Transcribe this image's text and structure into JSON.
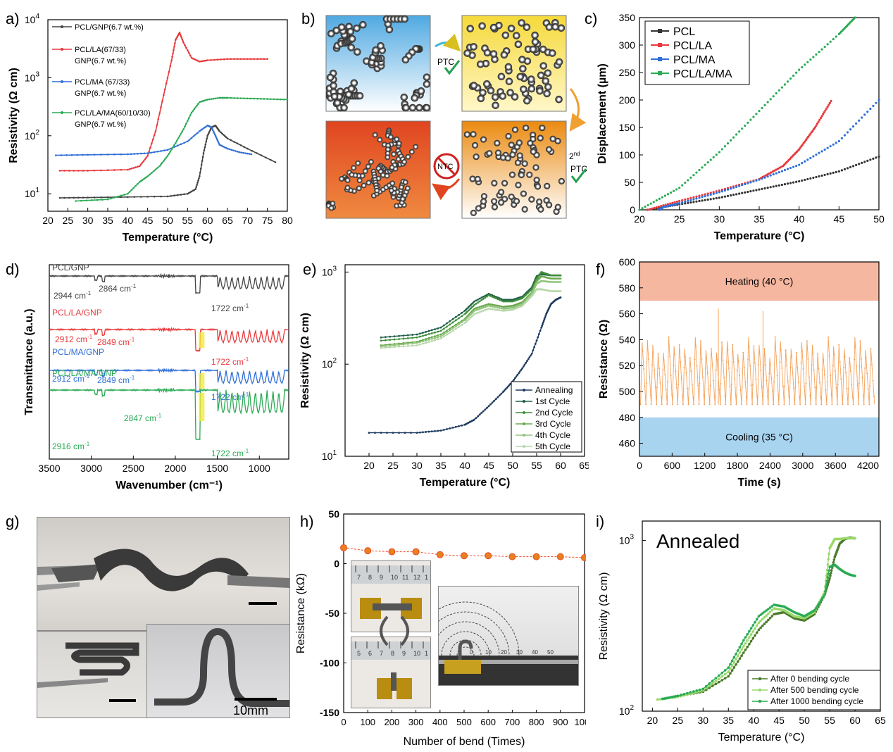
{
  "panel_labels": {
    "a": "a)",
    "b": "b)",
    "c": "c)",
    "d": "d)",
    "e": "e)",
    "f": "f)",
    "g": "g)",
    "h": "h)",
    "i": "i)"
  },
  "colors": {
    "black": "#3a3a3a",
    "red": "#e8393c",
    "blue": "#2f6fd8",
    "green": "#2bab55",
    "orange": "#f4a25a",
    "dark_navy": "#1e3a5f"
  },
  "chart_data": [
    {
      "id": "a",
      "type": "line",
      "xlabel": "Temperature (°C)",
      "ylabel": "Resistivity (Ω cm)",
      "xlim": [
        20,
        80
      ],
      "ylim": [
        5,
        10000
      ],
      "yscale": "log",
      "xticks": [
        20,
        25,
        30,
        35,
        40,
        45,
        50,
        55,
        60,
        65,
        70,
        75,
        80
      ],
      "yticks": [
        {
          "v": 10,
          "t": "10",
          "e": "1"
        },
        {
          "v": 100,
          "t": "10",
          "e": "2"
        },
        {
          "v": 1000,
          "t": "10",
          "e": "3"
        },
        {
          "v": 10000,
          "t": "10",
          "e": "4"
        }
      ],
      "legend_position": "top-left",
      "series": [
        {
          "name": "PCL/GNP(6.7 wt.%)",
          "color": "#444444",
          "x": [
            23,
            30,
            40,
            50,
            55,
            57,
            58,
            59,
            60,
            61,
            62,
            63,
            65,
            70,
            77
          ],
          "y": [
            8.5,
            8.6,
            8.8,
            9,
            10,
            12,
            20,
            50,
            100,
            140,
            150,
            120,
            90,
            60,
            35
          ]
        },
        {
          "name": "PCL/LA(67/33) GNP(6.7 wt.%)",
          "color": "#e8393c",
          "x": [
            23,
            30,
            40,
            43,
            45,
            47,
            49,
            51,
            52,
            53,
            54,
            56,
            58,
            60,
            65,
            70,
            75
          ],
          "y": [
            25,
            25,
            26,
            30,
            45,
            120,
            500,
            2000,
            4500,
            6000,
            4000,
            2200,
            1900,
            2000,
            2100,
            2100,
            2100
          ]
        },
        {
          "name": "PCL/MA (67/33) GNP(6.7 wt.%)",
          "color": "#2f6fd8",
          "x": [
            22,
            30,
            40,
            45,
            50,
            55,
            58,
            60,
            61,
            62,
            63,
            65,
            68,
            71
          ],
          "y": [
            46,
            47,
            48,
            50,
            57,
            80,
            120,
            150,
            140,
            100,
            70,
            60,
            52,
            48
          ]
        },
        {
          "name": "PCL/LA/MA(60/10/30) GNP(6.7 wt.%)",
          "color": "#2bab55",
          "x": [
            27,
            35,
            40,
            43,
            45,
            48,
            50,
            52,
            54,
            56,
            58,
            60,
            63,
            65,
            70,
            75,
            80
          ],
          "y": [
            7.5,
            8,
            10,
            16,
            20,
            30,
            45,
            75,
            130,
            250,
            380,
            420,
            450,
            450,
            440,
            430,
            420
          ]
        }
      ]
    },
    {
      "id": "c",
      "type": "scatter",
      "xlabel": "Temperature (°C)",
      "ylabel": "Displacement (µm)",
      "xlim": [
        20,
        50
      ],
      "ylim": [
        0,
        350
      ],
      "xticks": [
        20,
        25,
        30,
        35,
        40,
        45,
        50
      ],
      "yticks": [
        0,
        50,
        100,
        150,
        200,
        250,
        300,
        350
      ],
      "legend_position": "top-left",
      "series": [
        {
          "name": "PCL",
          "color": "#333333",
          "marker": "square",
          "x": [
            21,
            25,
            30,
            35,
            40,
            45,
            50
          ],
          "y": [
            0,
            10,
            22,
            37,
            52,
            70,
            97
          ]
        },
        {
          "name": "PCL/LA",
          "color": "#e8393c",
          "marker": "circle",
          "x": [
            21,
            25,
            30,
            35,
            38,
            40,
            42,
            44
          ],
          "y": [
            0,
            16,
            35,
            56,
            80,
            110,
            150,
            198
          ]
        },
        {
          "name": "PCL/MA",
          "color": "#2f6fd8",
          "marker": "triangle",
          "x": [
            22.5,
            23,
            25,
            30,
            35,
            40,
            45,
            50
          ],
          "y": [
            0,
            5,
            12,
            32,
            55,
            82,
            125,
            200
          ]
        },
        {
          "name": "PCL/LA/MA",
          "color": "#2bab55",
          "marker": "triangle-down",
          "x": [
            20,
            25,
            30,
            35,
            40,
            45,
            47
          ],
          "y": [
            0,
            40,
            105,
            180,
            255,
            320,
            350
          ]
        }
      ]
    },
    {
      "id": "d",
      "type": "line",
      "xlabel": "Wavenumber (cm⁻¹)",
      "ylabel": "Transmittance (a.u.)",
      "xlim": [
        3500,
        650
      ],
      "xreversed": true,
      "xticks": [
        3500,
        3000,
        2500,
        2000,
        1500,
        1000
      ],
      "series": [
        {
          "name": "PCL/GNP",
          "color": "#444444",
          "offset": 0
        },
        {
          "name": "PCL/LA/GNP",
          "color": "#e8393c",
          "offset": 1
        },
        {
          "name": "PCL/MA/GNP",
          "color": "#2f6fd8",
          "offset": 2
        },
        {
          "name": "PCL/LA/MA/GNP",
          "color": "#2bab55",
          "offset": 3
        }
      ],
      "annotations": [
        {
          "series": 0,
          "texts": [
            "2944 cm",
            "2864 cm",
            "1722 cm"
          ]
        },
        {
          "series": 1,
          "texts": [
            "2912 cm",
            "2849 cm",
            "1722 cm"
          ]
        },
        {
          "series": 2,
          "texts": [
            "2912 cm",
            "2849 cm",
            "1722 cm"
          ]
        },
        {
          "series": 3,
          "texts": [
            "2916 cm",
            "2847 cm",
            "1722 cm"
          ]
        }
      ]
    },
    {
      "id": "e",
      "type": "line",
      "xlabel": "Temperature (°C)",
      "ylabel": "Resistivity (Ω cm)",
      "xlim": [
        15,
        65
      ],
      "ylim": [
        10,
        1200
      ],
      "yscale": "log",
      "xticks": [
        20,
        25,
        30,
        35,
        40,
        45,
        50,
        55,
        60,
        65
      ],
      "yticks": [
        {
          "v": 10,
          "t": "10",
          "e": "1"
        },
        {
          "v": 100,
          "t": "10",
          "e": "2"
        },
        {
          "v": 1000,
          "t": "10",
          "e": "3"
        }
      ],
      "legend_position": "bottom-right",
      "series": [
        {
          "name": "Annealing",
          "color": "#1e3a5f",
          "x": [
            20,
            30,
            35,
            40,
            42,
            45,
            48,
            50,
            52,
            54,
            56,
            57,
            58,
            59,
            60
          ],
          "y": [
            18,
            18,
            19,
            22,
            25,
            35,
            50,
            65,
            90,
            130,
            250,
            350,
            450,
            500,
            530
          ]
        },
        {
          "name": "1st Cycle",
          "color": "#1f5f4a",
          "x": [
            22.5,
            30,
            35,
            40,
            42,
            45,
            48,
            50,
            52,
            54,
            55,
            56,
            58,
            60
          ],
          "y": [
            195,
            210,
            250,
            380,
            480,
            580,
            500,
            500,
            540,
            680,
            900,
            950,
            920,
            920
          ]
        },
        {
          "name": "2nd Cycle",
          "color": "#3f8f3a",
          "x": [
            22.5,
            30,
            35,
            40,
            42,
            45,
            48,
            50,
            52,
            54,
            55,
            56,
            58,
            60
          ],
          "y": [
            180,
            195,
            230,
            350,
            440,
            560,
            480,
            480,
            520,
            650,
            850,
            1000,
            920,
            920
          ]
        },
        {
          "name": "3rd Cycle",
          "color": "#6aa84f",
          "x": [
            22.5,
            30,
            35,
            40,
            42,
            45,
            48,
            50,
            52,
            54,
            55,
            56,
            58,
            60
          ],
          "y": [
            160,
            175,
            210,
            310,
            400,
            450,
            420,
            430,
            470,
            600,
            800,
            900,
            850,
            850
          ]
        },
        {
          "name": "4th Cycle",
          "color": "#93c47d",
          "x": [
            22.5,
            30,
            35,
            40,
            42,
            45,
            48,
            50,
            52,
            54,
            55,
            56,
            58,
            60
          ],
          "y": [
            155,
            170,
            200,
            300,
            380,
            430,
            400,
            410,
            450,
            580,
            750,
            800,
            780,
            780
          ]
        },
        {
          "name": "5th Cycle",
          "color": "#b6d7a8",
          "x": [
            22.5,
            30,
            35,
            40,
            42,
            45,
            48,
            50,
            52,
            54,
            55,
            56,
            58,
            60
          ],
          "y": [
            150,
            160,
            190,
            280,
            350,
            400,
            380,
            390,
            430,
            550,
            650,
            650,
            620,
            620
          ]
        }
      ]
    },
    {
      "id": "f",
      "type": "line",
      "xlabel": "Time (s)",
      "ylabel": "Resistance (Ω)",
      "xlim": [
        0,
        4400
      ],
      "ylim": [
        450,
        600
      ],
      "xticks": [
        0,
        600,
        1200,
        1800,
        2400,
        3000,
        3600,
        4200
      ],
      "yticks": [
        460,
        480,
        500,
        520,
        540,
        560,
        580,
        600
      ],
      "bands": [
        {
          "label": "Heating (40 °C)",
          "from": 570,
          "to": 600,
          "color": "#f6b7a0"
        },
        {
          "label": "Cooling (35 °C)",
          "from": 450,
          "to": 480,
          "color": "#a9d4f0"
        }
      ],
      "series": [
        {
          "name": "",
          "color": "#f4a25a",
          "low": 490,
          "high": 542,
          "cycles": 44,
          "spikes": [
            {
              "t": 1450,
              "v": 564
            },
            {
              "t": 2270,
              "v": 562
            }
          ]
        }
      ]
    },
    {
      "id": "h",
      "type": "scatter",
      "xlabel": "Number of bend (Times)",
      "ylabel": "Resistance (kΩ)",
      "xlim": [
        0,
        1000
      ],
      "ylim": [
        -150,
        50
      ],
      "xticks": [
        0,
        100,
        200,
        300,
        400,
        500,
        600,
        700,
        800,
        900,
        1000
      ],
      "yticks": [
        50,
        0,
        -50,
        -100,
        -150
      ],
      "series": [
        {
          "name": "",
          "color": "#e8801e",
          "x": [
            0,
            100,
            200,
            300,
            400,
            500,
            600,
            700,
            800,
            900,
            1000
          ],
          "y": [
            16,
            13,
            12,
            12,
            9,
            8,
            8,
            7,
            7,
            7,
            6
          ]
        }
      ]
    },
    {
      "id": "i",
      "type": "line",
      "title": "Annealed",
      "xlabel": "Temperature (°C)",
      "ylabel": "Resistivity (Ω cm)",
      "xlim": [
        18,
        65
      ],
      "ylim": [
        100,
        1300
      ],
      "yscale": "log",
      "xticks": [
        20,
        25,
        30,
        35,
        40,
        45,
        50,
        55,
        60,
        65
      ],
      "yticks": [
        {
          "v": 100,
          "t": "10",
          "e": "2"
        },
        {
          "v": 1000,
          "t": "10",
          "e": "3"
        }
      ],
      "legend_position": "bottom-right",
      "series": [
        {
          "name": "After 0 bending cycle",
          "color": "#4a7a2a",
          "x": [
            22,
            25,
            30,
            35,
            38,
            41,
            44,
            46,
            48,
            50,
            52,
            54,
            55,
            56,
            57,
            58,
            59,
            60
          ],
          "y": [
            118,
            122,
            130,
            160,
            220,
            300,
            370,
            380,
            350,
            340,
            370,
            480,
            600,
            800,
            960,
            1020,
            1040,
            1030
          ]
        },
        {
          "name": "After 500 bending cycle",
          "color": "#9ad86a",
          "x": [
            21,
            25,
            30,
            35,
            38,
            41,
            44,
            46,
            48,
            50,
            52,
            54,
            55,
            56,
            57,
            58,
            59,
            60
          ],
          "y": [
            117,
            121,
            132,
            170,
            240,
            330,
            400,
            390,
            360,
            350,
            380,
            500,
            900,
            1020,
            1020,
            1030,
            1030,
            1030
          ]
        },
        {
          "name": "After 1000 bending cycle",
          "color": "#2bab55",
          "x": [
            22,
            25,
            30,
            35,
            38,
            41,
            44,
            46,
            48,
            50,
            52,
            54,
            55,
            56,
            57,
            58,
            59,
            60
          ],
          "y": [
            118,
            123,
            135,
            180,
            260,
            360,
            420,
            410,
            380,
            360,
            390,
            480,
            700,
            720,
            680,
            650,
            630,
            620
          ]
        }
      ]
    }
  ],
  "schematic_b": {
    "labels": {
      "ptc": "PTC",
      "second_sup": "nd",
      "second": "2",
      "second_ptc": "PTC",
      "ntc": "NTC"
    }
  },
  "photos_g": {
    "scale_bar_label": "10mm"
  },
  "inset_h": {
    "ruler_ticks_a": [
      "7",
      "8",
      "9",
      "10",
      "11",
      "12",
      "1"
    ],
    "ruler_ticks_b": [
      "5",
      "6",
      "7",
      "8",
      "9",
      "10",
      "1"
    ],
    "arc_ticks": [
      "0",
      "10",
      "20",
      "30",
      "40",
      "50"
    ]
  }
}
